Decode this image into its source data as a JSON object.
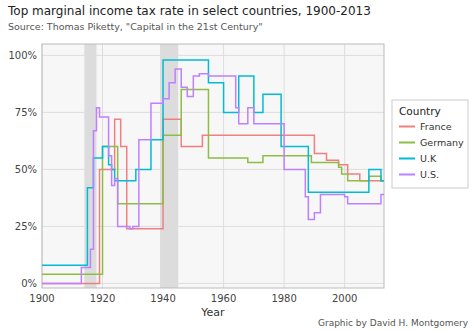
{
  "chart_data": {
    "type": "step",
    "title": "Top marginal income tax rate in select countries, 1900-2013",
    "subtitle": "Source: Thomas Piketty, \"Capital in the 21st Century\"",
    "footer": "Graphic by David H. Montgomery",
    "x_label": "Year",
    "legend_title": "Country",
    "legend": "right",
    "grid": true,
    "xlim": [
      1900,
      2013
    ],
    "xticks": [
      1900,
      1920,
      1940,
      1960,
      1980,
      2000
    ],
    "ylim": [
      -2,
      105
    ],
    "yticks": [
      {
        "value": 0,
        "label": "0%"
      },
      {
        "value": 25,
        "label": "25%"
      },
      {
        "value": 50,
        "label": "50%"
      },
      {
        "value": 75,
        "label": "75%"
      },
      {
        "value": 100,
        "label": "100%"
      }
    ],
    "shaded_ranges": [
      [
        1914,
        1918
      ],
      [
        1939,
        1945
      ]
    ],
    "x": [
      1900,
      1901,
      1902,
      1903,
      1904,
      1905,
      1906,
      1907,
      1908,
      1909,
      1910,
      1911,
      1912,
      1913,
      1914,
      1915,
      1916,
      1917,
      1918,
      1919,
      1920,
      1921,
      1922,
      1923,
      1924,
      1925,
      1926,
      1927,
      1928,
      1929,
      1930,
      1931,
      1932,
      1933,
      1934,
      1935,
      1936,
      1937,
      1938,
      1939,
      1940,
      1941,
      1942,
      1943,
      1944,
      1945,
      1946,
      1947,
      1948,
      1949,
      1950,
      1951,
      1952,
      1953,
      1954,
      1955,
      1956,
      1957,
      1958,
      1959,
      1960,
      1961,
      1962,
      1963,
      1964,
      1965,
      1966,
      1967,
      1968,
      1969,
      1970,
      1971,
      1972,
      1973,
      1974,
      1975,
      1976,
      1977,
      1978,
      1979,
      1980,
      1981,
      1982,
      1983,
      1984,
      1985,
      1986,
      1987,
      1988,
      1989,
      1990,
      1991,
      1992,
      1993,
      1994,
      1995,
      1996,
      1997,
      1998,
      1999,
      2000,
      2001,
      2002,
      2003,
      2004,
      2005,
      2006,
      2007,
      2008,
      2009,
      2010,
      2011,
      2012,
      2013
    ],
    "series": [
      {
        "name": "France",
        "color": "#f08080",
        "values": [
          0,
          0,
          0,
          0,
          0,
          0,
          0,
          0,
          0,
          0,
          0,
          0,
          0,
          0,
          0,
          0,
          0,
          0,
          0,
          50,
          50,
          50,
          50,
          50,
          72,
          72,
          60,
          60,
          24,
          24,
          24,
          24,
          24,
          24,
          24,
          24,
          24,
          24,
          24,
          24,
          72,
          72,
          72,
          72,
          72,
          72,
          60,
          60,
          60,
          60,
          60,
          60,
          60,
          65,
          65,
          65,
          65,
          65,
          65,
          65,
          65,
          65,
          65,
          65,
          65,
          65,
          65,
          65,
          65,
          65,
          65,
          65,
          65,
          65,
          65,
          65,
          65,
          65,
          65,
          65,
          65,
          65,
          65,
          65,
          65,
          65,
          65,
          65,
          65,
          65,
          57,
          57,
          57,
          57,
          54,
          54,
          54,
          54,
          52,
          52,
          52,
          48,
          48,
          48,
          48,
          45,
          45,
          45,
          45,
          45,
          45,
          45,
          45,
          45
        ]
      },
      {
        "name": "Germany",
        "color": "#8fbc45",
        "values": [
          4,
          4,
          4,
          4,
          4,
          4,
          4,
          4,
          4,
          4,
          4,
          4,
          4,
          4,
          4,
          4,
          4,
          4,
          4,
          4,
          60,
          60,
          60,
          60,
          60,
          35,
          35,
          35,
          35,
          35,
          35,
          35,
          35,
          35,
          35,
          35,
          35,
          35,
          35,
          35,
          65,
          65,
          65,
          65,
          65,
          65,
          85,
          85,
          85,
          85,
          85,
          85,
          85,
          85,
          85,
          55,
          55,
          55,
          55,
          55,
          55,
          55,
          55,
          55,
          55,
          55,
          55,
          55,
          53,
          53,
          53,
          53,
          53,
          56,
          56,
          56,
          56,
          56,
          56,
          56,
          56,
          56,
          56,
          56,
          56,
          56,
          56,
          56,
          56,
          53,
          53,
          53,
          53,
          53,
          53,
          53,
          53,
          53,
          51,
          48,
          48,
          45,
          45,
          45,
          45,
          45,
          45,
          45,
          47,
          47,
          47,
          47,
          45,
          45
        ]
      },
      {
        "name": "U.K",
        "color": "#00bcd4",
        "values": [
          8,
          8,
          8,
          8,
          8,
          8,
          8,
          8,
          8,
          8,
          8,
          8,
          8,
          8,
          8,
          42,
          42,
          55,
          55,
          55,
          60,
          60,
          52,
          50,
          45,
          45,
          45,
          45,
          45,
          45,
          45,
          50,
          50,
          50,
          50,
          50,
          63,
          63,
          63,
          63,
          98,
          98,
          98,
          98,
          98,
          98,
          98,
          98,
          98,
          98,
          98,
          98,
          98,
          98,
          98,
          88,
          88,
          88,
          88,
          88,
          75,
          75,
          75,
          75,
          75,
          91,
          91,
          91,
          91,
          91,
          75,
          75,
          75,
          83,
          83,
          83,
          83,
          83,
          83,
          60,
          60,
          60,
          60,
          60,
          60,
          60,
          60,
          60,
          40,
          40,
          40,
          40,
          40,
          40,
          40,
          40,
          40,
          40,
          40,
          40,
          40,
          40,
          40,
          40,
          40,
          40,
          40,
          40,
          50,
          50,
          50,
          50,
          45,
          45
        ]
      },
      {
        "name": "U.S.",
        "color": "#bf80ff",
        "values": [
          0,
          0,
          0,
          0,
          0,
          0,
          0,
          0,
          0,
          0,
          0,
          0,
          0,
          7,
          7,
          7,
          15,
          67,
          77,
          73,
          73,
          73,
          56,
          43,
          46,
          25,
          25,
          25,
          25,
          24,
          25,
          25,
          63,
          63,
          63,
          63,
          79,
          79,
          79,
          79,
          81,
          81,
          88,
          88,
          94,
          94,
          86,
          86,
          82,
          82,
          91,
          91,
          92,
          92,
          92,
          91,
          91,
          91,
          91,
          91,
          91,
          91,
          91,
          91,
          77,
          70,
          70,
          70,
          77,
          77,
          70,
          70,
          70,
          70,
          70,
          70,
          70,
          70,
          70,
          70,
          50,
          50,
          50,
          50,
          50,
          50,
          50,
          38,
          28,
          28,
          31,
          31,
          39,
          39,
          39,
          39,
          39,
          39,
          39,
          39,
          38,
          35,
          35,
          35,
          35,
          35,
          35,
          35,
          35,
          35,
          35,
          35,
          39,
          39
        ]
      }
    ]
  }
}
